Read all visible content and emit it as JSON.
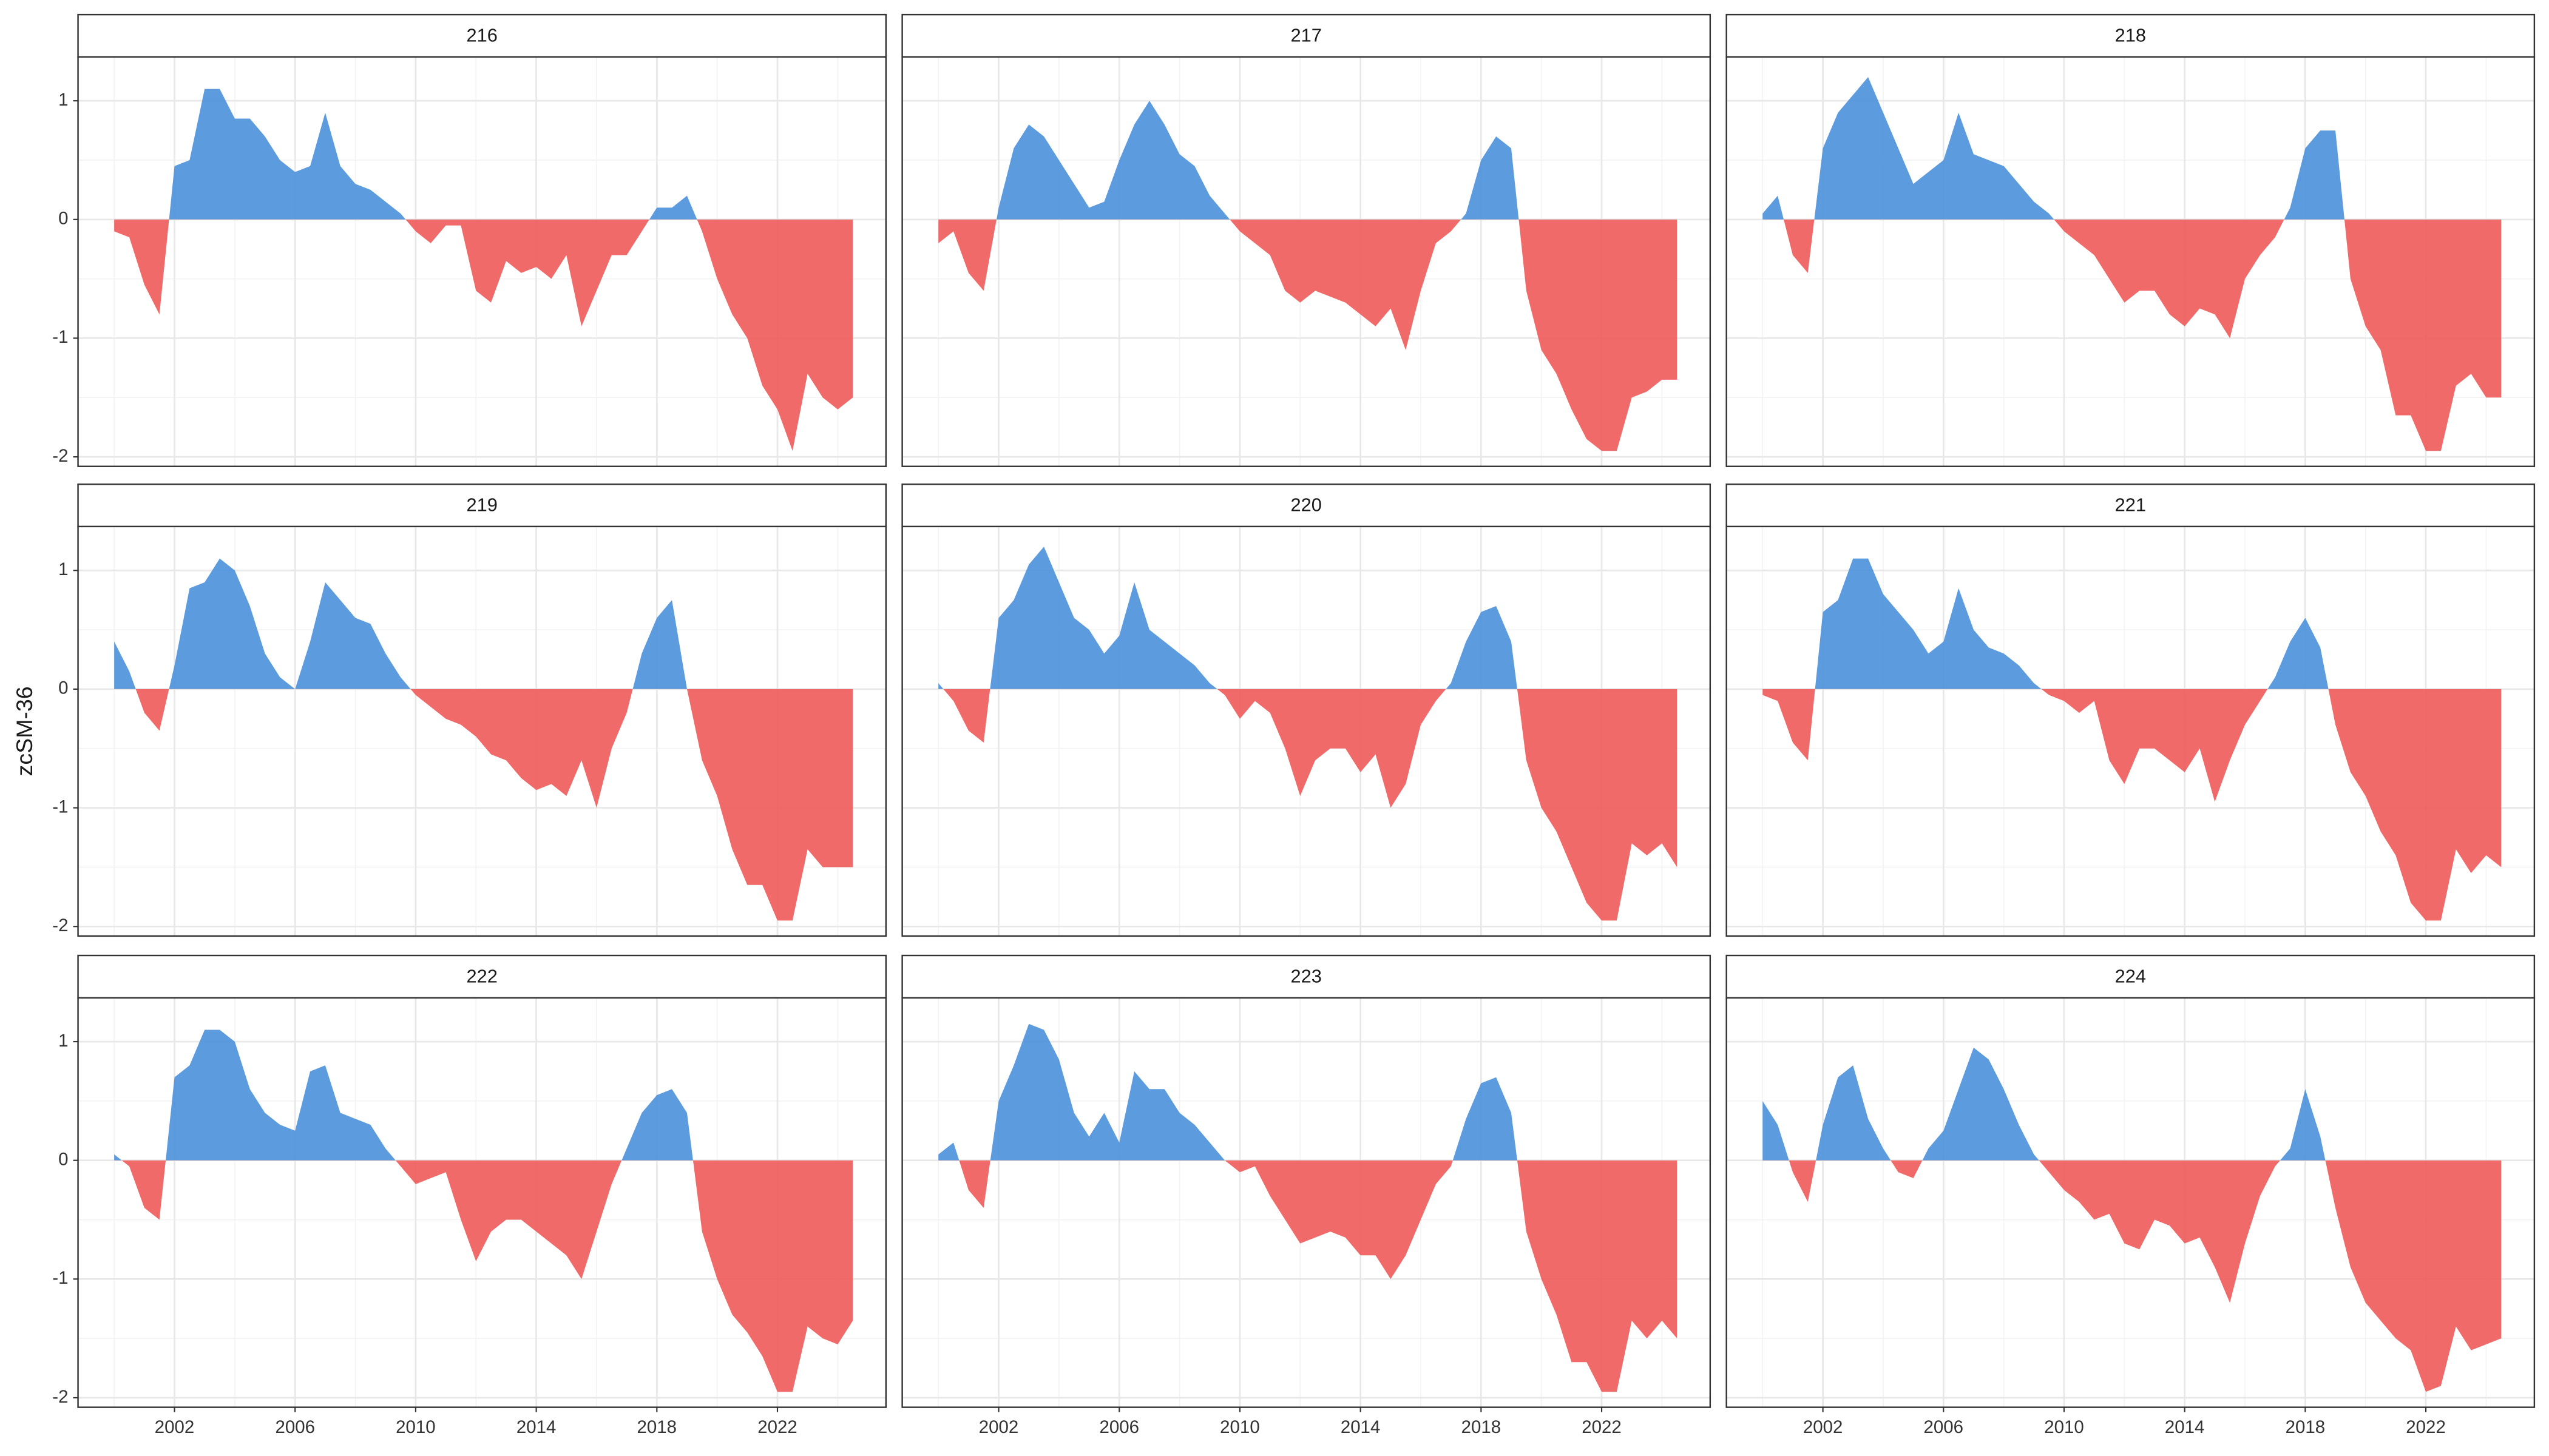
{
  "chart_data": {
    "type": "area",
    "y_label": "zcSM-36",
    "positive_color": "#4a90d9",
    "negative_color": "#f05a5a",
    "grid": true,
    "xlim": [
      1998.8,
      2025.6
    ],
    "xticks": [
      2002,
      2006,
      2010,
      2014,
      2018,
      2022
    ],
    "ylim": [
      -2.08,
      1.37
    ],
    "yticks": [
      -2,
      -1,
      0,
      1
    ],
    "x": [
      2000,
      2000.5,
      2001,
      2001.5,
      2002,
      2002.5,
      2003,
      2003.5,
      2004,
      2004.5,
      2005,
      2005.5,
      2006,
      2006.5,
      2007,
      2007.5,
      2008,
      2008.5,
      2009,
      2009.5,
      2010,
      2010.5,
      2011,
      2011.5,
      2012,
      2012.5,
      2013,
      2013.5,
      2014,
      2014.5,
      2015,
      2015.5,
      2016,
      2016.5,
      2017,
      2017.5,
      2018,
      2018.5,
      2019,
      2019.5,
      2020,
      2020.5,
      2021,
      2021.5,
      2022,
      2022.5,
      2023,
      2023.5,
      2024,
      2024.5
    ],
    "facets": [
      {
        "title": "216",
        "values": [
          -0.1,
          -0.15,
          -0.55,
          -0.8,
          0.45,
          0.5,
          1.1,
          1.1,
          0.85,
          0.85,
          0.7,
          0.5,
          0.4,
          0.45,
          0.9,
          0.45,
          0.3,
          0.25,
          0.15,
          0.05,
          -0.1,
          -0.2,
          -0.05,
          -0.05,
          -0.6,
          -0.7,
          -0.35,
          -0.45,
          -0.4,
          -0.5,
          -0.3,
          -0.9,
          -0.6,
          -0.3,
          -0.3,
          -0.1,
          0.1,
          0.1,
          0.2,
          -0.1,
          -0.5,
          -0.8,
          -1.0,
          -1.4,
          -1.6,
          -1.95,
          -1.3,
          -1.5,
          -1.6,
          -1.5
        ]
      },
      {
        "title": "217",
        "values": [
          -0.2,
          -0.1,
          -0.45,
          -0.6,
          0.1,
          0.6,
          0.8,
          0.7,
          0.5,
          0.3,
          0.1,
          0.15,
          0.5,
          0.8,
          1.0,
          0.8,
          0.55,
          0.45,
          0.2,
          0.05,
          -0.1,
          -0.2,
          -0.3,
          -0.6,
          -0.7,
          -0.6,
          -0.65,
          -0.7,
          -0.8,
          -0.9,
          -0.75,
          -1.1,
          -0.6,
          -0.2,
          -0.1,
          0.05,
          0.5,
          0.7,
          0.6,
          -0.6,
          -1.1,
          -1.3,
          -1.6,
          -1.85,
          -1.95,
          -1.95,
          -1.5,
          -1.45,
          -1.35,
          -1.35
        ]
      },
      {
        "title": "218",
        "values": [
          0.05,
          0.2,
          -0.3,
          -0.45,
          0.6,
          0.9,
          1.05,
          1.2,
          0.9,
          0.6,
          0.3,
          0.4,
          0.5,
          0.9,
          0.55,
          0.5,
          0.45,
          0.3,
          0.15,
          0.05,
          -0.1,
          -0.2,
          -0.3,
          -0.5,
          -0.7,
          -0.6,
          -0.6,
          -0.8,
          -0.9,
          -0.75,
          -0.8,
          -1.0,
          -0.5,
          -0.3,
          -0.15,
          0.1,
          0.6,
          0.75,
          0.75,
          -0.5,
          -0.9,
          -1.1,
          -1.65,
          -1.65,
          -1.95,
          -1.95,
          -1.4,
          -1.3,
          -1.5,
          -1.5
        ]
      },
      {
        "title": "219",
        "values": [
          0.4,
          0.15,
          -0.2,
          -0.35,
          0.2,
          0.85,
          0.9,
          1.1,
          1.0,
          0.7,
          0.3,
          0.1,
          0.0,
          0.4,
          0.9,
          0.75,
          0.6,
          0.55,
          0.3,
          0.1,
          -0.05,
          -0.15,
          -0.25,
          -0.3,
          -0.4,
          -0.55,
          -0.6,
          -0.75,
          -0.85,
          -0.8,
          -0.9,
          -0.6,
          -1.0,
          -0.5,
          -0.2,
          0.3,
          0.6,
          0.75,
          0.0,
          -0.6,
          -0.9,
          -1.35,
          -1.65,
          -1.65,
          -1.95,
          -1.95,
          -1.35,
          -1.5,
          -1.5,
          -1.5
        ]
      },
      {
        "title": "220",
        "values": [
          0.05,
          -0.1,
          -0.35,
          -0.45,
          0.6,
          0.75,
          1.05,
          1.2,
          0.9,
          0.6,
          0.5,
          0.3,
          0.45,
          0.9,
          0.5,
          0.4,
          0.3,
          0.2,
          0.05,
          -0.05,
          -0.25,
          -0.1,
          -0.2,
          -0.5,
          -0.9,
          -0.6,
          -0.5,
          -0.5,
          -0.7,
          -0.55,
          -1.0,
          -0.8,
          -0.3,
          -0.1,
          0.05,
          0.4,
          0.65,
          0.7,
          0.4,
          -0.6,
          -1.0,
          -1.2,
          -1.5,
          -1.8,
          -1.95,
          -1.95,
          -1.3,
          -1.4,
          -1.3,
          -1.5
        ]
      },
      {
        "title": "221",
        "values": [
          -0.05,
          -0.1,
          -0.45,
          -0.6,
          0.65,
          0.75,
          1.1,
          1.1,
          0.8,
          0.65,
          0.5,
          0.3,
          0.4,
          0.85,
          0.5,
          0.35,
          0.3,
          0.2,
          0.05,
          -0.05,
          -0.1,
          -0.2,
          -0.1,
          -0.6,
          -0.8,
          -0.5,
          -0.5,
          -0.6,
          -0.7,
          -0.5,
          -0.95,
          -0.6,
          -0.3,
          -0.1,
          0.1,
          0.4,
          0.6,
          0.35,
          -0.3,
          -0.7,
          -0.9,
          -1.2,
          -1.4,
          -1.8,
          -1.95,
          -1.95,
          -1.35,
          -1.55,
          -1.4,
          -1.5
        ]
      },
      {
        "title": "222",
        "values": [
          0.05,
          -0.05,
          -0.4,
          -0.5,
          0.7,
          0.8,
          1.1,
          1.1,
          1.0,
          0.6,
          0.4,
          0.3,
          0.25,
          0.75,
          0.8,
          0.4,
          0.35,
          0.3,
          0.1,
          -0.05,
          -0.2,
          -0.15,
          -0.1,
          -0.5,
          -0.85,
          -0.6,
          -0.5,
          -0.5,
          -0.6,
          -0.7,
          -0.8,
          -1.0,
          -0.6,
          -0.2,
          0.1,
          0.4,
          0.55,
          0.6,
          0.4,
          -0.6,
          -1.0,
          -1.3,
          -1.45,
          -1.65,
          -1.95,
          -1.95,
          -1.4,
          -1.5,
          -1.55,
          -1.35
        ]
      },
      {
        "title": "223",
        "values": [
          0.05,
          0.15,
          -0.25,
          -0.4,
          0.5,
          0.8,
          1.15,
          1.1,
          0.85,
          0.4,
          0.2,
          0.4,
          0.15,
          0.75,
          0.6,
          0.6,
          0.4,
          0.3,
          0.15,
          0.0,
          -0.1,
          -0.05,
          -0.3,
          -0.5,
          -0.7,
          -0.65,
          -0.6,
          -0.65,
          -0.8,
          -0.8,
          -1.0,
          -0.8,
          -0.5,
          -0.2,
          -0.05,
          0.35,
          0.65,
          0.7,
          0.4,
          -0.6,
          -1.0,
          -1.3,
          -1.7,
          -1.7,
          -1.95,
          -1.95,
          -1.35,
          -1.5,
          -1.35,
          -1.5
        ]
      },
      {
        "title": "224",
        "values": [
          0.5,
          0.3,
          -0.1,
          -0.35,
          0.3,
          0.7,
          0.8,
          0.35,
          0.1,
          -0.1,
          -0.15,
          0.1,
          0.25,
          0.6,
          0.95,
          0.85,
          0.6,
          0.3,
          0.05,
          -0.1,
          -0.25,
          -0.35,
          -0.5,
          -0.45,
          -0.7,
          -0.75,
          -0.5,
          -0.55,
          -0.7,
          -0.65,
          -0.9,
          -1.2,
          -0.7,
          -0.3,
          -0.05,
          0.1,
          0.6,
          0.2,
          -0.4,
          -0.9,
          -1.2,
          -1.35,
          -1.5,
          -1.6,
          -1.95,
          -1.9,
          -1.4,
          -1.6,
          -1.55,
          -1.5
        ]
      }
    ]
  }
}
